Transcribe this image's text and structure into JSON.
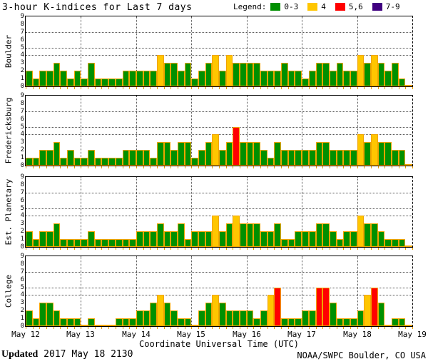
{
  "chart_data": {
    "type": "bar",
    "title": "3-hour K-indices for Last 7 days",
    "xlabel": "Coordinate Universal Time (UTC)",
    "legend_label": "Legend:",
    "legend": [
      {
        "label": "0-3",
        "color": "#009000"
      },
      {
        "label": "4",
        "color": "#ffc600"
      },
      {
        "label": "5,6",
        "color": "#ff0000"
      },
      {
        "label": "7-9",
        "color": "#400080"
      }
    ],
    "colors": {
      "green": "#009000",
      "yellow": "#ffc600",
      "red": "#ff0000",
      "purple": "#400080",
      "bar_outline": "#f0a400",
      "grid": "#555555"
    },
    "ylim": [
      0,
      9
    ],
    "y_ticks": [
      0,
      1,
      2,
      3,
      4,
      5,
      6,
      7,
      8,
      9
    ],
    "y_gridlines": [
      4,
      5,
      7
    ],
    "x_tick_labels": [
      "May 12",
      "May 13",
      "May 14",
      "May 15",
      "May 16",
      "May 17",
      "May 18",
      "May 19"
    ],
    "bars_per_day": 8,
    "panels": [
      {
        "station": "Boulder",
        "values": [
          2,
          1,
          2,
          2,
          3,
          2,
          1,
          2,
          1,
          3,
          1,
          1,
          1,
          1,
          2,
          2,
          2,
          2,
          2,
          4,
          3,
          3,
          2,
          3,
          1,
          2,
          3,
          4,
          2,
          4,
          3,
          3,
          3,
          3,
          2,
          2,
          2,
          3,
          2,
          2,
          1,
          2,
          3,
          3,
          2,
          3,
          2,
          2,
          4,
          3,
          4,
          3,
          2,
          3,
          1,
          0
        ]
      },
      {
        "station": "Fredericksburg",
        "values": [
          1,
          1,
          2,
          2,
          3,
          1,
          2,
          1,
          1,
          2,
          1,
          1,
          1,
          1,
          2,
          2,
          2,
          2,
          1,
          3,
          3,
          2,
          3,
          3,
          1,
          2,
          3,
          4,
          2,
          3,
          5,
          3,
          3,
          3,
          2,
          1,
          3,
          2,
          2,
          2,
          2,
          2,
          3,
          3,
          2,
          2,
          2,
          2,
          4,
          3,
          4,
          3,
          3,
          2,
          2,
          0
        ]
      },
      {
        "station": "Est. Planetary",
        "values": [
          2,
          1,
          2,
          2,
          3,
          1,
          1,
          1,
          1,
          2,
          1,
          1,
          1,
          1,
          1,
          1,
          2,
          2,
          2,
          3,
          2,
          2,
          3,
          1,
          2,
          2,
          2,
          4,
          2,
          3,
          4,
          3,
          3,
          3,
          2,
          2,
          3,
          1,
          1,
          2,
          2,
          2,
          3,
          3,
          2,
          1,
          2,
          2,
          4,
          3,
          3,
          2,
          1,
          1,
          1,
          0
        ]
      },
      {
        "station": "College",
        "values": [
          2,
          1,
          3,
          3,
          2,
          1,
          1,
          1,
          0,
          1,
          0,
          0,
          0,
          1,
          1,
          1,
          2,
          2,
          3,
          4,
          3,
          2,
          1,
          1,
          0,
          2,
          3,
          4,
          3,
          2,
          2,
          2,
          2,
          1,
          2,
          4,
          5,
          1,
          1,
          1,
          2,
          2,
          5,
          5,
          3,
          1,
          1,
          1,
          2,
          4,
          5,
          3,
          0,
          1,
          1,
          0
        ]
      }
    ]
  },
  "footer": {
    "updated_label": "Updated",
    "updated_value": " 2017 May 18 2130",
    "source": "NOAA/SWPC Boulder, CO USA"
  }
}
